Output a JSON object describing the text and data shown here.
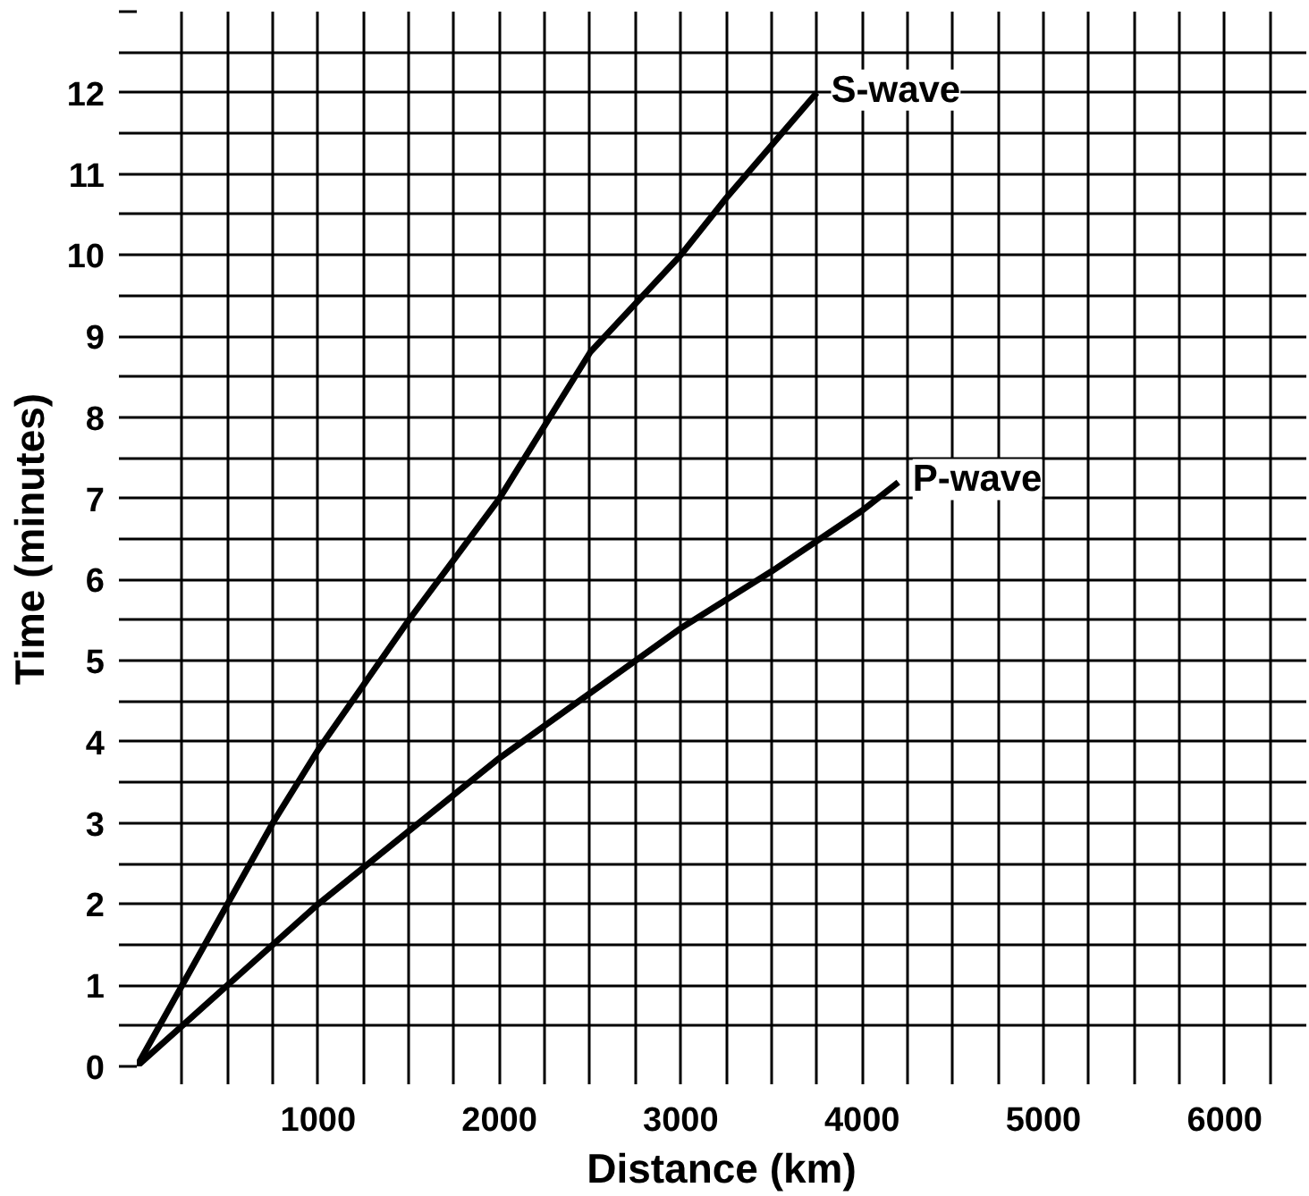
{
  "chart_data": {
    "type": "line",
    "xlabel": "Distance (km)",
    "ylabel": "Time (minutes)",
    "xlim": [
      0,
      6450
    ],
    "ylim": [
      0,
      13
    ],
    "xticks": [
      {
        "value": 250,
        "label": null
      },
      {
        "value": 500,
        "label": null
      },
      {
        "value": 750,
        "label": null
      },
      1000,
      {
        "value": 1250,
        "label": null
      },
      {
        "value": 1500,
        "label": null
      },
      {
        "value": 1750,
        "label": null
      },
      2000,
      {
        "value": 2250,
        "label": null
      },
      {
        "value": 2500,
        "label": null
      },
      {
        "value": 2750,
        "label": null
      },
      3000,
      {
        "value": 3250,
        "label": null
      },
      {
        "value": 3500,
        "label": null
      },
      {
        "value": 3750,
        "label": null
      },
      4000,
      {
        "value": 4250,
        "label": null
      },
      {
        "value": 4500,
        "label": null
      },
      {
        "value": 4750,
        "label": null
      },
      5000,
      {
        "value": 5250,
        "label": null
      },
      {
        "value": 5500,
        "label": null
      },
      {
        "value": 5750,
        "label": null
      },
      6000,
      {
        "value": 6250,
        "label": null
      }
    ],
    "yticks": [
      0,
      {
        "value": 0.5,
        "label": null
      },
      1,
      {
        "value": 1.5,
        "label": null
      },
      2,
      {
        "value": 2.5,
        "label": null
      },
      3,
      {
        "value": 3.5,
        "label": null
      },
      4,
      {
        "value": 4.5,
        "label": null
      },
      5,
      {
        "value": 5.5,
        "label": null
      },
      6,
      {
        "value": 6.5,
        "label": null
      },
      7,
      {
        "value": 7.5,
        "label": null
      },
      8,
      {
        "value": 8.5,
        "label": null
      },
      9,
      {
        "value": 9.5,
        "label": null
      },
      10,
      {
        "value": 10.5,
        "label": null
      },
      11,
      {
        "value": 11.5,
        "label": null
      },
      12,
      {
        "value": 12.5,
        "label": null
      },
      {
        "value": 13,
        "label": null
      }
    ],
    "grid": true,
    "line_style": "solid",
    "series": [
      {
        "name": "S-wave",
        "color": "#000000",
        "x": [
          0,
          250,
          500,
          750,
          1000,
          1500,
          2000,
          2500,
          3000,
          3250,
          3750
        ],
        "values": [
          0,
          1,
          2,
          3,
          3.9,
          5.5,
          7,
          8.8,
          10,
          10.7,
          12
        ]
      },
      {
        "name": "P-wave",
        "color": "#000000",
        "x": [
          0,
          250,
          500,
          1000,
          1500,
          2000,
          2500,
          3000,
          3500,
          4000,
          4200
        ],
        "values": [
          0,
          0.5,
          1,
          2,
          2.9,
          3.8,
          4.6,
          5.4,
          6.1,
          6.85,
          7.2
        ]
      }
    ]
  }
}
